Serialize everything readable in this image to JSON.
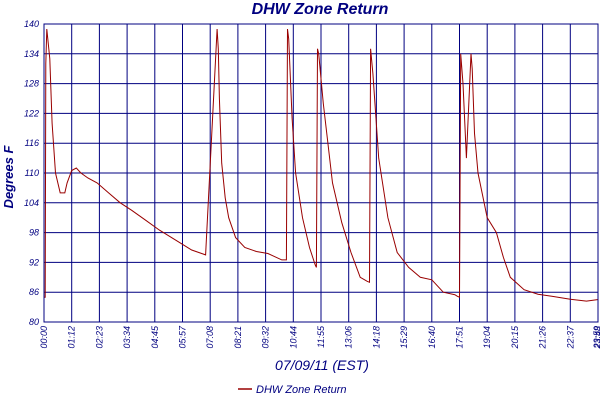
{
  "chart_data": {
    "type": "line",
    "title": "DHW Zone Return",
    "xlabel": "07/09/11 (EST)",
    "ylabel": "Degrees F",
    "ylim": [
      80,
      140
    ],
    "yticks": [
      "80",
      "86",
      "92",
      "98",
      "104",
      "110",
      "116",
      "122",
      "128",
      "134",
      "140"
    ],
    "xticks": [
      "00:00",
      "01:12",
      "02:23",
      "03:34",
      "04:45",
      "05:57",
      "07:08",
      "08:21",
      "09:32",
      "10:44",
      "11:55",
      "13:06",
      "14:18",
      "15:29",
      "16:40",
      "17:51",
      "19:04",
      "20:15",
      "21:26",
      "22:37",
      "23:48",
      "23:59"
    ],
    "grid": true,
    "legend_position": "bottom-center",
    "series": [
      {
        "name": "DHW Zone Return",
        "color": "#990000",
        "x": [
          0,
          0.05,
          0.08,
          0.12,
          0.25,
          0.35,
          0.5,
          0.7,
          0.9,
          1.0,
          1.2,
          1.4,
          1.6,
          1.9,
          2.3,
          2.8,
          3.3,
          3.8,
          4.4,
          5.0,
          5.7,
          6.4,
          7.0,
          7.5,
          7.55,
          7.6,
          7.7,
          7.85,
          8.0,
          8.3,
          8.7,
          9.2,
          9.7,
          10.3,
          10.5,
          10.55,
          10.6,
          10.75,
          10.9,
          11.2,
          11.5,
          11.75,
          11.8,
          11.85,
          11.9,
          12.1,
          12.5,
          12.9,
          13.3,
          13.7,
          14.0,
          14.1,
          14.15,
          14.25,
          14.5,
          14.9,
          15.3,
          15.8,
          16.3,
          16.8,
          17.3,
          17.8,
          17.9,
          18.0,
          18.05,
          18.15,
          18.3,
          18.5,
          18.55,
          18.65,
          18.8,
          19.2,
          19.6,
          19.9,
          20.2,
          20.8,
          21.4,
          22.0,
          22.8,
          23.5,
          23.98
        ],
        "values": [
          85,
          85,
          132,
          139,
          133,
          120,
          110,
          106,
          106,
          108,
          110.5,
          111,
          110,
          109,
          108,
          106,
          104,
          102.5,
          100.5,
          98.5,
          96.5,
          94.5,
          93.5,
          139,
          135,
          125,
          112,
          105,
          101,
          97,
          95,
          94.2,
          93.8,
          92.5,
          92.5,
          139,
          137,
          121,
          110,
          101,
          95,
          91.5,
          91,
          135,
          134,
          124,
          108,
          100,
          94,
          89,
          88.2,
          88,
          135,
          130,
          113,
          101,
          94,
          91,
          89,
          88.5,
          86,
          85.5,
          85.2,
          85,
          134,
          128,
          113,
          134,
          131,
          118,
          110,
          101,
          98,
          93,
          89,
          86.5,
          85.6,
          85.2,
          84.6,
          84.2,
          84.5
        ]
      }
    ]
  }
}
